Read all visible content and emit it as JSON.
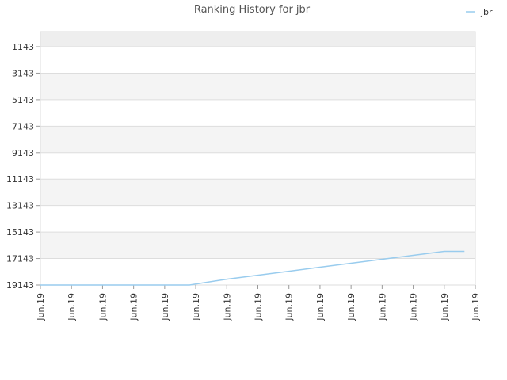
{
  "chart_data": {
    "type": "line",
    "title": "Ranking History for jbr",
    "xlabel": "",
    "ylabel": "",
    "x_tick_labels": [
      "Jun.19",
      "Jun.19",
      "Jun.19",
      "Jun.19",
      "Jun.19",
      "Jun.19",
      "Jun.19",
      "Jun.19",
      "Jun.19",
      "Jun.19",
      "Jun.19",
      "Jun.19",
      "Jun.19",
      "Jun.19",
      "Jun.19"
    ],
    "y_tick_labels": [
      "1143",
      "3143",
      "5143",
      "7143",
      "9143",
      "11143",
      "13143",
      "15143",
      "17143",
      "19143"
    ],
    "y_ticks": [
      1143,
      3143,
      5143,
      7143,
      9143,
      11143,
      13143,
      15143,
      17143,
      19143
    ],
    "ylim": [
      19143,
      0
    ],
    "y_inverted": true,
    "xlim": [
      0,
      14
    ],
    "grid": true,
    "legend_position": "top-right",
    "colors": {
      "series": "#99ccee",
      "band_dark": "#f4f4f4",
      "band_light": "#ffffff",
      "band_top": "#eeeeee",
      "grid": "#dddddd"
    },
    "series": [
      {
        "name": "jbr",
        "x": [
          0,
          1,
          2,
          3,
          4,
          4.8,
          6,
          7,
          8,
          9,
          10,
          11,
          12,
          13,
          13.65
        ],
        "y": [
          19143,
          19143,
          19143,
          19143,
          19143,
          19143,
          18700,
          18400,
          18100,
          17800,
          17500,
          17200,
          16900,
          16600,
          16600
        ]
      }
    ]
  }
}
